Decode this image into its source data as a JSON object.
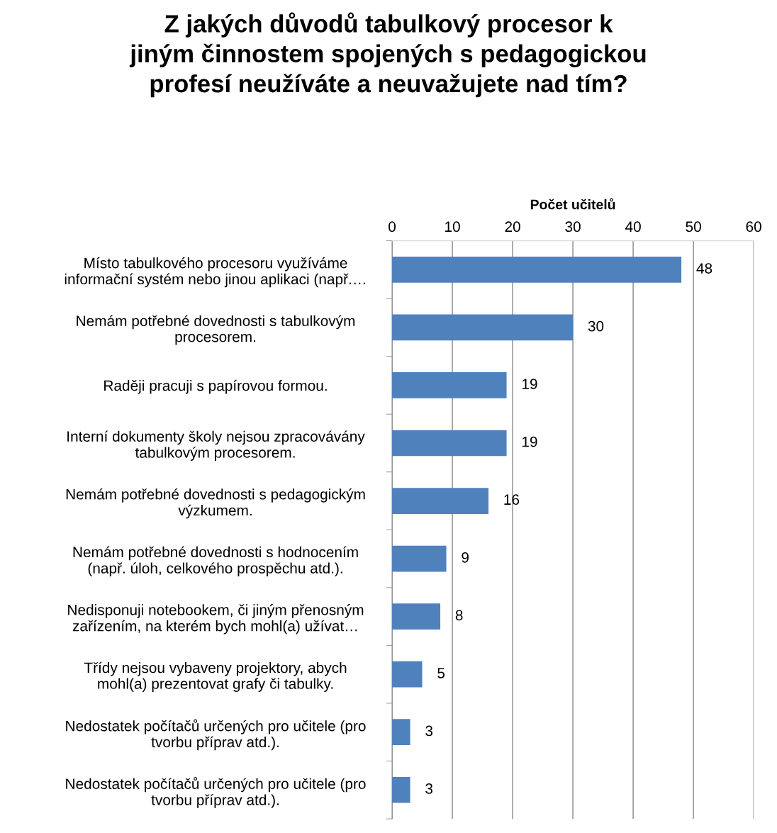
{
  "chart_data": {
    "type": "bar",
    "orientation": "horizontal",
    "title": "Z jakých důvodů tabulkový procesor k\njiným činnostem spojených s pedagogickou\nprofesí neužíváte a neuvažujete nad tím?",
    "xlabel": "Počet učitelů",
    "categories": [
      "Místo tabulkového procesoru využíváme\ninformační systém nebo jinou aplikaci (např.…",
      "Nemám potřebné dovednosti s tabulkovým\nprocesorem.",
      "Raději pracuji s papírovou formou.",
      "Interní dokumenty školy nejsou zpracovávány\ntabulkovým procesorem.",
      "Nemám potřebné dovednosti s pedagogickým\nvýzkumem.",
      "Nemám potřebné dovednosti s hodnocením\n(např. úloh, celkového prospěchu atd.).",
      "Nedisponuji notebookem, či jiným přenosným\nzařízením, na kterém bych mohl(a) užívat…",
      "Třídy nejsou vybaveny projektory, abych\nmohl(a) prezentovat grafy či tabulky.",
      "Nedostatek počítačů určených pro učitele (pro\ntvorbu příprav atd.).",
      "Nedostatek počítačů určených pro učitele (pro\ntvorbu příprav atd.)."
    ],
    "values": [
      48,
      30,
      19,
      19,
      16,
      9,
      8,
      5,
      3,
      3
    ],
    "color": "#4f81bd",
    "xlim": [
      0,
      60
    ],
    "xticks": [
      0,
      10,
      20,
      30,
      40,
      50,
      60
    ],
    "grid": "x",
    "data_labels": true
  }
}
